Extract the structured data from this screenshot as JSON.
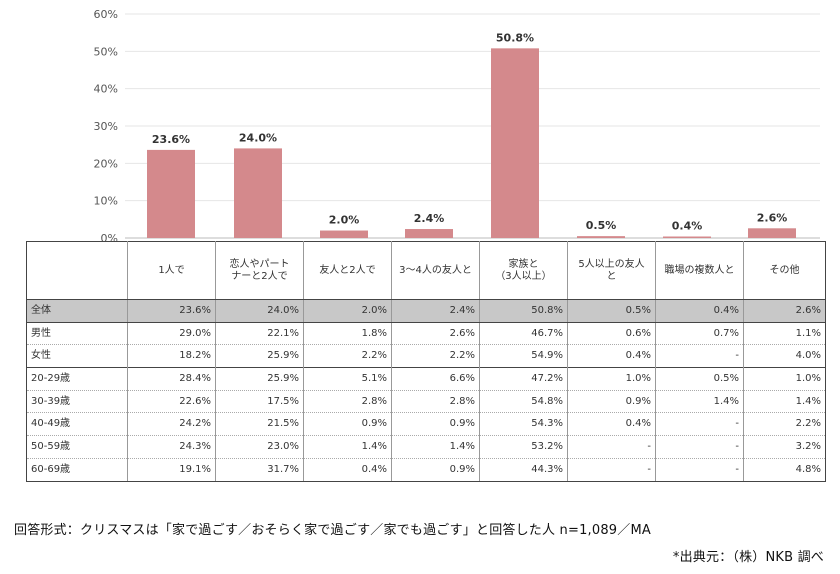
{
  "chart_data": {
    "type": "bar",
    "categories": [
      "1人で",
      "恋人やパートナーと2人で",
      "友人と2人で",
      "3～4人の友人と",
      "家族と（3人以上）",
      "5人以上の友人と",
      "職場の複数人と",
      "その他"
    ],
    "values": [
      23.6,
      24.0,
      2.0,
      2.4,
      50.8,
      0.5,
      0.4,
      2.6
    ],
    "value_labels": [
      "23.6%",
      "24.0%",
      "2.0%",
      "2.4%",
      "50.8%",
      "0.5%",
      "0.4%",
      "2.6%"
    ],
    "y_ticks": [
      "0%",
      "10%",
      "20%",
      "30%",
      "40%",
      "50%",
      "60%"
    ],
    "ylim": [
      0,
      60
    ],
    "bar_color": "#d4898c",
    "grid": true
  },
  "table": {
    "headers": [
      [
        "1人で"
      ],
      [
        "恋人やパート",
        "ナーと2人で"
      ],
      [
        "友人と2人で"
      ],
      [
        "3～4人の友人と"
      ],
      [
        "家族と",
        "（3人以上）"
      ],
      [
        "5人以上の友人",
        "と"
      ],
      [
        "職場の複数人と"
      ],
      [
        "その他"
      ]
    ],
    "rows": [
      {
        "label": "全体",
        "values": [
          "23.6%",
          "24.0%",
          "2.0%",
          "2.4%",
          "50.8%",
          "0.5%",
          "0.4%",
          "2.6%"
        ]
      },
      {
        "label": "男性",
        "values": [
          "29.0%",
          "22.1%",
          "1.8%",
          "2.6%",
          "46.7%",
          "0.6%",
          "0.7%",
          "1.1%"
        ]
      },
      {
        "label": "女性",
        "values": [
          "18.2%",
          "25.9%",
          "2.2%",
          "2.2%",
          "54.9%",
          "0.4%",
          "-",
          "4.0%"
        ]
      },
      {
        "label": "20-29歳",
        "values": [
          "28.4%",
          "25.9%",
          "5.1%",
          "6.6%",
          "47.2%",
          "1.0%",
          "0.5%",
          "1.0%"
        ]
      },
      {
        "label": "30-39歳",
        "values": [
          "22.6%",
          "17.5%",
          "2.8%",
          "2.8%",
          "54.8%",
          "0.9%",
          "1.4%",
          "1.4%"
        ]
      },
      {
        "label": "40-49歳",
        "values": [
          "24.2%",
          "21.5%",
          "0.9%",
          "0.9%",
          "54.3%",
          "0.4%",
          "-",
          "2.2%"
        ]
      },
      {
        "label": "50-59歳",
        "values": [
          "24.3%",
          "23.0%",
          "1.4%",
          "1.4%",
          "53.2%",
          "-",
          "-",
          "3.2%"
        ]
      },
      {
        "label": "60-69歳",
        "values": [
          "19.1%",
          "31.7%",
          "0.4%",
          "0.9%",
          "44.3%",
          "-",
          "-",
          "4.8%"
        ]
      }
    ]
  },
  "footnote": "回答形式：クリスマスは「家で過ごす／おそらく家で過ごす／家でも過ごす」と回答した人 n=1,089／MA",
  "source": "*出典元：（株）NKB 調べ"
}
